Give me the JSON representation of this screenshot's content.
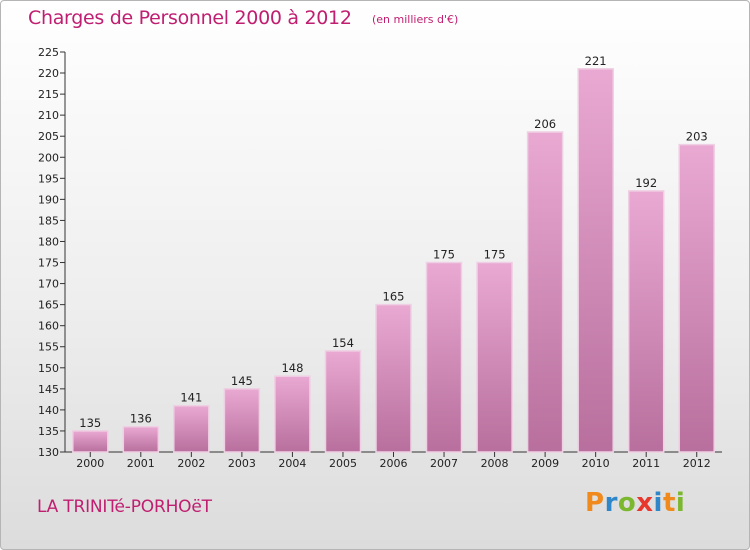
{
  "header": {
    "title": "Charges de Personnel 2000 à 2012",
    "subtitle": "(en milliers d'€)"
  },
  "footer": {
    "place": "LA TRINITé-PORHOëT",
    "logo_letters": [
      "P",
      "r",
      "o",
      "x",
      "i",
      "t",
      "i"
    ],
    "logo_colors": [
      "#f08a1c",
      "#2f86c8",
      "#7cb82f",
      "#e8372d",
      "#2f86c8",
      "#f08a1c",
      "#7cb82f"
    ]
  },
  "colors": {
    "bar_light": "#e9a9d2",
    "bar_dark": "#b86f9d",
    "text_accent": "#c01e70"
  },
  "chart_data": {
    "type": "bar",
    "title": "Charges de Personnel 2000 à 2012",
    "subtitle": "(en milliers d'€)",
    "categories": [
      "2000",
      "2001",
      "2002",
      "2003",
      "2004",
      "2005",
      "2006",
      "2007",
      "2008",
      "2009",
      "2010",
      "2011",
      "2012"
    ],
    "values": [
      135,
      136,
      141,
      145,
      148,
      154,
      165,
      175,
      175,
      206,
      221,
      192,
      203
    ],
    "data_labels": [
      "135",
      "136",
      "141",
      "145",
      "148",
      "154",
      "165",
      "175",
      "175",
      "206",
      "221",
      "192",
      "203"
    ],
    "yticks": [
      "130",
      "135",
      "140",
      "145",
      "150",
      "155",
      "160",
      "165",
      "170",
      "175",
      "180",
      "185",
      "190",
      "195",
      "200",
      "205",
      "210",
      "215",
      "220",
      "225"
    ],
    "ylim": [
      130,
      225
    ],
    "grid": false,
    "legend": "none"
  }
}
